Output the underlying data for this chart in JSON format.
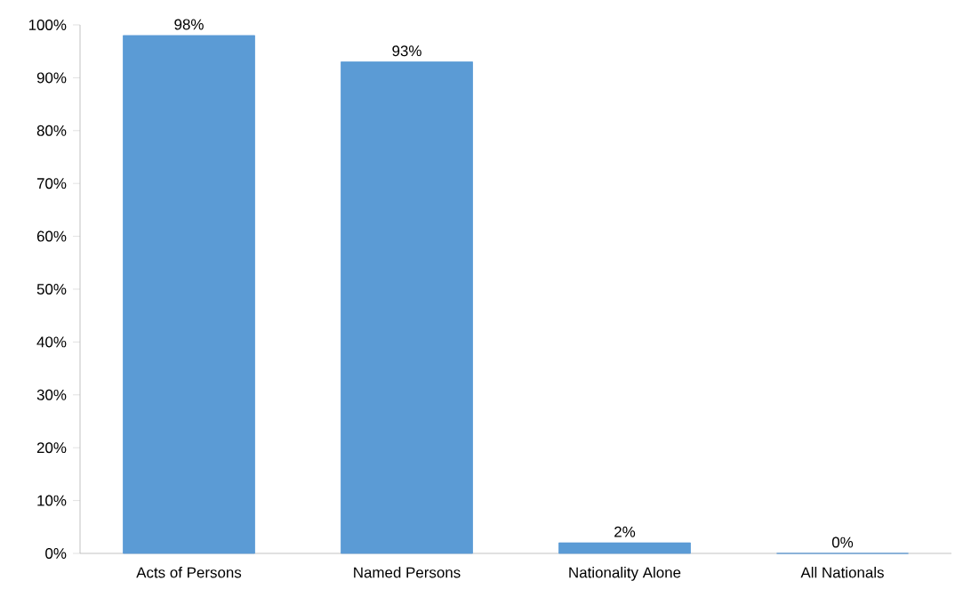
{
  "chart_data": {
    "type": "bar",
    "categories": [
      "Acts of Persons",
      "Named Persons",
      "Nationality Alone",
      "All Nationals"
    ],
    "values": [
      98,
      93,
      2,
      0
    ],
    "value_labels": [
      "98%",
      "93%",
      "2%",
      "0%"
    ],
    "color": "#5b9bd5",
    "ylim": [
      0,
      100
    ],
    "yticks": [
      {
        "value": 0,
        "label": "0%"
      },
      {
        "value": 10,
        "label": "10%"
      },
      {
        "value": 20,
        "label": "20%"
      },
      {
        "value": 30,
        "label": "30%"
      },
      {
        "value": 40,
        "label": "40%"
      },
      {
        "value": 50,
        "label": "50%"
      },
      {
        "value": 60,
        "label": "60%"
      },
      {
        "value": 70,
        "label": "70%"
      },
      {
        "value": 80,
        "label": "80%"
      },
      {
        "value": 90,
        "label": "90%"
      },
      {
        "value": 100,
        "label": "100%"
      }
    ],
    "grid": false
  }
}
